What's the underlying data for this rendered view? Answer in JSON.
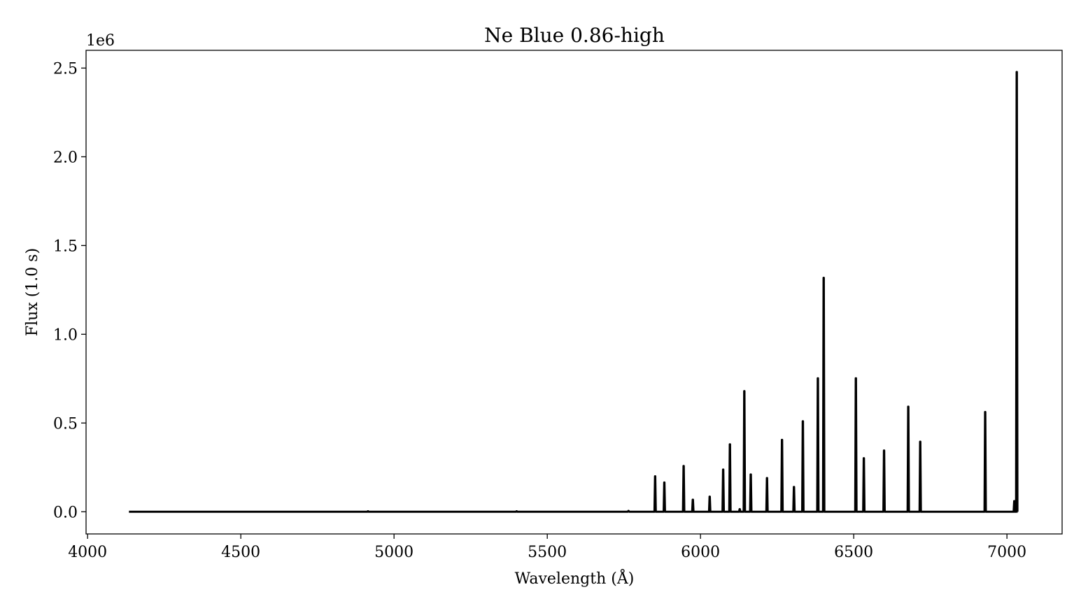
{
  "chart_data": {
    "type": "line",
    "title": "Ne Blue 0.86-high",
    "xlabel": "Wavelength (Å)",
    "ylabel": "Flux (1.0 s)",
    "y_offset_label": "1e6",
    "xlim": [
      3995,
      7180
    ],
    "ylim": [
      -125000,
      2600000
    ],
    "x_ticks": [
      4000,
      4500,
      5000,
      5500,
      6000,
      6500,
      7000
    ],
    "x_tick_labels": [
      "4000",
      "4500",
      "5000",
      "5500",
      "6000",
      "6500",
      "7000"
    ],
    "y_ticks": [
      0,
      500000,
      1000000,
      1500000,
      2000000,
      2500000
    ],
    "y_tick_labels": [
      "0.0",
      "0.5",
      "1.0",
      "1.5",
      "2.0",
      "2.5"
    ],
    "grid": false,
    "line_color": "#000000",
    "x_range": [
      4135,
      7035
    ],
    "peaks": [
      {
        "x": 4915,
        "y": 3000
      },
      {
        "x": 5400,
        "y": 3000
      },
      {
        "x": 5765,
        "y": 5000
      },
      {
        "x": 5852,
        "y": 200000
      },
      {
        "x": 5882,
        "y": 165000
      },
      {
        "x": 5945,
        "y": 258000
      },
      {
        "x": 5975,
        "y": 68000
      },
      {
        "x": 6030,
        "y": 85000
      },
      {
        "x": 6074,
        "y": 238000
      },
      {
        "x": 6096,
        "y": 380000
      },
      {
        "x": 6128,
        "y": 15000
      },
      {
        "x": 6143,
        "y": 680000
      },
      {
        "x": 6164,
        "y": 210000
      },
      {
        "x": 6217,
        "y": 190000
      },
      {
        "x": 6266,
        "y": 405000
      },
      {
        "x": 6305,
        "y": 140000
      },
      {
        "x": 6334,
        "y": 510000
      },
      {
        "x": 6383,
        "y": 752000
      },
      {
        "x": 6402,
        "y": 1318000
      },
      {
        "x": 6507,
        "y": 752000
      },
      {
        "x": 6533,
        "y": 302000
      },
      {
        "x": 6599,
        "y": 345000
      },
      {
        "x": 6678,
        "y": 592000
      },
      {
        "x": 6717,
        "y": 395000
      },
      {
        "x": 6929,
        "y": 562000
      },
      {
        "x": 7024,
        "y": 60000
      },
      {
        "x": 7032,
        "y": 2478000
      }
    ]
  }
}
